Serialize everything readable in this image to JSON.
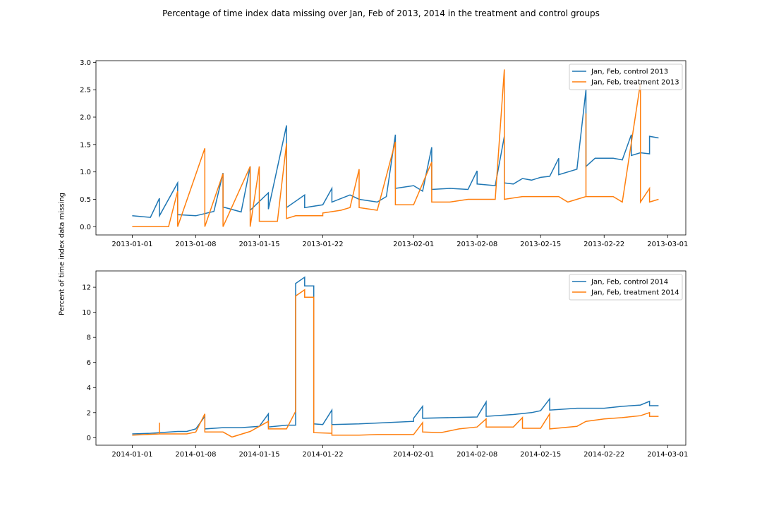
{
  "figure": {
    "title": "Percentage of time index data missing over Jan, Feb of 2013, 2014 in the treatment and control groups",
    "shared_ylabel": "Percent of time index data missing"
  },
  "chart_data": [
    {
      "type": "line",
      "xlabel": "",
      "ylabel": "Percent of time index data missing",
      "x_is_date": true,
      "xlim": [
        "2012-12-28",
        "2013-03-03"
      ],
      "ylim": [
        -0.15,
        3.03
      ],
      "xticks": [
        "2013-01-01",
        "2013-01-08",
        "2013-01-15",
        "2013-01-22",
        "2013-02-01",
        "2013-02-08",
        "2013-02-15",
        "2013-02-22",
        "2013-03-01"
      ],
      "yticks": [
        0.0,
        0.5,
        1.0,
        1.5,
        2.0,
        2.5,
        3.0
      ],
      "ytick_labels": [
        "0.0",
        "0.5",
        "1.0",
        "1.5",
        "2.0",
        "2.5",
        "3.0"
      ],
      "grid": false,
      "legend_position": "top-right",
      "series": [
        {
          "name": "Jan, Feb, control 2013",
          "color": "#1f77b4",
          "points": [
            [
              "2013-01-01",
              0.2
            ],
            [
              "2013-01-03",
              0.17
            ],
            [
              "2013-01-04",
              0.52
            ],
            [
              "2013-01-04",
              0.2
            ],
            [
              "2013-01-06",
              0.8
            ],
            [
              "2013-01-06",
              0.22
            ],
            [
              "2013-01-08",
              0.2
            ],
            [
              "2013-01-10",
              0.28
            ],
            [
              "2013-01-11",
              0.98
            ],
            [
              "2013-01-11",
              0.36
            ],
            [
              "2013-01-13",
              0.27
            ],
            [
              "2013-01-14",
              1.1
            ],
            [
              "2013-01-14",
              0.3
            ],
            [
              "2013-01-16",
              0.62
            ],
            [
              "2013-01-16",
              0.32
            ],
            [
              "2013-01-18",
              1.85
            ],
            [
              "2013-01-18",
              0.35
            ],
            [
              "2013-01-20",
              0.58
            ],
            [
              "2013-01-20",
              0.35
            ],
            [
              "2013-01-22",
              0.4
            ],
            [
              "2013-01-23",
              0.7
            ],
            [
              "2013-01-23",
              0.45
            ],
            [
              "2013-01-25",
              0.58
            ],
            [
              "2013-01-26",
              0.5
            ],
            [
              "2013-01-28",
              0.45
            ],
            [
              "2013-01-29",
              0.55
            ],
            [
              "2013-01-30",
              1.68
            ],
            [
              "2013-01-30",
              0.7
            ],
            [
              "2013-02-01",
              0.75
            ],
            [
              "2013-02-02",
              0.65
            ],
            [
              "2013-02-03",
              1.45
            ],
            [
              "2013-02-03",
              0.68
            ],
            [
              "2013-02-05",
              0.7
            ],
            [
              "2013-02-07",
              0.68
            ],
            [
              "2013-02-08",
              1.02
            ],
            [
              "2013-02-08",
              0.78
            ],
            [
              "2013-02-10",
              0.75
            ],
            [
              "2013-02-11",
              1.65
            ],
            [
              "2013-02-11",
              0.8
            ],
            [
              "2013-02-12",
              0.78
            ],
            [
              "2013-02-13",
              0.88
            ],
            [
              "2013-02-14",
              0.85
            ],
            [
              "2013-02-15",
              0.9
            ],
            [
              "2013-02-16",
              0.92
            ],
            [
              "2013-02-17",
              1.25
            ],
            [
              "2013-02-17",
              0.95
            ],
            [
              "2013-02-19",
              1.05
            ],
            [
              "2013-02-20",
              2.5
            ],
            [
              "2013-02-20",
              1.1
            ],
            [
              "2013-02-21",
              1.25
            ],
            [
              "2013-02-23",
              1.25
            ],
            [
              "2013-02-24",
              1.22
            ],
            [
              "2013-02-25",
              1.68
            ],
            [
              "2013-02-25",
              1.3
            ],
            [
              "2013-02-26",
              1.35
            ],
            [
              "2013-02-27",
              1.33
            ],
            [
              "2013-02-27",
              1.65
            ],
            [
              "2013-02-28",
              1.62
            ]
          ]
        },
        {
          "name": "Jan, Feb, treatment 2013",
          "color": "#ff7f0e",
          "points": [
            [
              "2013-01-01",
              0.0
            ],
            [
              "2013-01-05",
              0.0
            ],
            [
              "2013-01-06",
              0.65
            ],
            [
              "2013-01-06",
              0.0
            ],
            [
              "2013-01-09",
              1.43
            ],
            [
              "2013-01-09",
              0.0
            ],
            [
              "2013-01-11",
              0.97
            ],
            [
              "2013-01-11",
              0.0
            ],
            [
              "2013-01-14",
              1.1
            ],
            [
              "2013-01-14",
              0.0
            ],
            [
              "2013-01-15",
              1.1
            ],
            [
              "2013-01-15",
              0.1
            ],
            [
              "2013-01-17",
              0.1
            ],
            [
              "2013-01-18",
              1.52
            ],
            [
              "2013-01-18",
              0.15
            ],
            [
              "2013-01-19",
              0.2
            ],
            [
              "2013-01-22",
              0.2
            ],
            [
              "2013-01-22",
              0.25
            ],
            [
              "2013-01-24",
              0.3
            ],
            [
              "2013-01-25",
              0.35
            ],
            [
              "2013-01-26",
              1.05
            ],
            [
              "2013-01-26",
              0.35
            ],
            [
              "2013-01-28",
              0.3
            ],
            [
              "2013-01-30",
              1.55
            ],
            [
              "2013-01-30",
              0.4
            ],
            [
              "2013-02-01",
              0.4
            ],
            [
              "2013-02-03",
              1.18
            ],
            [
              "2013-02-03",
              0.45
            ],
            [
              "2013-02-05",
              0.45
            ],
            [
              "2013-02-07",
              0.5
            ],
            [
              "2013-02-10",
              0.5
            ],
            [
              "2013-02-11",
              2.87
            ],
            [
              "2013-02-11",
              0.5
            ],
            [
              "2013-02-13",
              0.55
            ],
            [
              "2013-02-17",
              0.55
            ],
            [
              "2013-02-18",
              0.45
            ],
            [
              "2013-02-20",
              0.55
            ],
            [
              "2013-02-20",
              2.07
            ],
            [
              "2013-02-20",
              0.55
            ],
            [
              "2013-02-23",
              0.55
            ],
            [
              "2013-02-24",
              0.45
            ],
            [
              "2013-02-26",
              2.62
            ],
            [
              "2013-02-26",
              0.45
            ],
            [
              "2013-02-27",
              0.7
            ],
            [
              "2013-02-27",
              0.45
            ],
            [
              "2013-02-28",
              0.5
            ]
          ]
        }
      ]
    },
    {
      "type": "line",
      "xlabel": "",
      "ylabel": "Percent of time index data missing",
      "x_is_date": true,
      "xlim": [
        "2013-12-28",
        "2014-03-03"
      ],
      "ylim": [
        -0.6,
        13.3
      ],
      "xticks": [
        "2014-01-01",
        "2014-01-08",
        "2014-01-15",
        "2014-01-22",
        "2014-02-01",
        "2014-02-08",
        "2014-02-15",
        "2014-02-22",
        "2014-03-01"
      ],
      "yticks": [
        0,
        2,
        4,
        6,
        8,
        10,
        12
      ],
      "ytick_labels": [
        "0",
        "2",
        "4",
        "6",
        "8",
        "10",
        "12"
      ],
      "grid": false,
      "legend_position": "top-right",
      "series": [
        {
          "name": "Jan, Feb, control 2014",
          "color": "#1f77b4",
          "points": [
            [
              "2014-01-01",
              0.3
            ],
            [
              "2014-01-03",
              0.35
            ],
            [
              "2014-01-06",
              0.5
            ],
            [
              "2014-01-07",
              0.5
            ],
            [
              "2014-01-08",
              0.7
            ],
            [
              "2014-01-09",
              1.7
            ],
            [
              "2014-01-09",
              0.7
            ],
            [
              "2014-01-11",
              0.8
            ],
            [
              "2014-01-13",
              0.8
            ],
            [
              "2014-01-15",
              0.9
            ],
            [
              "2014-01-16",
              1.9
            ],
            [
              "2014-01-16",
              0.85
            ],
            [
              "2014-01-18",
              1.0
            ],
            [
              "2014-01-19",
              1.0
            ],
            [
              "2014-01-19",
              12.3
            ],
            [
              "2014-01-20",
              12.8
            ],
            [
              "2014-01-20",
              12.1
            ],
            [
              "2014-01-21",
              12.1
            ],
            [
              "2014-01-21",
              1.1
            ],
            [
              "2014-01-22",
              1.05
            ],
            [
              "2014-01-23",
              2.2
            ],
            [
              "2014-01-23",
              1.05
            ],
            [
              "2014-01-26",
              1.1
            ],
            [
              "2014-01-29",
              1.2
            ],
            [
              "2014-02-01",
              1.3
            ],
            [
              "2014-02-01",
              1.55
            ],
            [
              "2014-02-02",
              2.5
            ],
            [
              "2014-02-02",
              1.55
            ],
            [
              "2014-02-05",
              1.6
            ],
            [
              "2014-02-08",
              1.65
            ],
            [
              "2014-02-09",
              2.85
            ],
            [
              "2014-02-09",
              1.7
            ],
            [
              "2014-02-12",
              1.85
            ],
            [
              "2014-02-14",
              2.0
            ],
            [
              "2014-02-15",
              2.15
            ],
            [
              "2014-02-16",
              3.1
            ],
            [
              "2014-02-16",
              2.2
            ],
            [
              "2014-02-19",
              2.35
            ],
            [
              "2014-02-22",
              2.35
            ],
            [
              "2014-02-24",
              2.5
            ],
            [
              "2014-02-26",
              2.6
            ],
            [
              "2014-02-27",
              2.9
            ],
            [
              "2014-02-27",
              2.55
            ],
            [
              "2014-02-28",
              2.55
            ]
          ]
        },
        {
          "name": "Jan, Feb, treatment 2014",
          "color": "#ff7f0e",
          "points": [
            [
              "2014-01-01",
              0.2
            ],
            [
              "2014-01-04",
              0.3
            ],
            [
              "2014-01-04",
              1.2
            ],
            [
              "2014-01-04",
              0.3
            ],
            [
              "2014-01-07",
              0.3
            ],
            [
              "2014-01-08",
              0.45
            ],
            [
              "2014-01-09",
              1.9
            ],
            [
              "2014-01-09",
              0.45
            ],
            [
              "2014-01-11",
              0.45
            ],
            [
              "2014-01-12",
              0.05
            ],
            [
              "2014-01-14",
              0.5
            ],
            [
              "2014-01-16",
              1.3
            ],
            [
              "2014-01-16",
              0.7
            ],
            [
              "2014-01-18",
              0.7
            ],
            [
              "2014-01-19",
              2.1
            ],
            [
              "2014-01-19",
              11.3
            ],
            [
              "2014-01-20",
              11.8
            ],
            [
              "2014-01-20",
              11.2
            ],
            [
              "2014-01-21",
              11.2
            ],
            [
              "2014-01-21",
              0.4
            ],
            [
              "2014-01-23",
              0.35
            ],
            [
              "2014-01-23",
              1.05
            ],
            [
              "2014-01-23",
              0.2
            ],
            [
              "2014-01-26",
              0.2
            ],
            [
              "2014-01-28",
              0.25
            ],
            [
              "2014-02-01",
              0.25
            ],
            [
              "2014-02-02",
              1.2
            ],
            [
              "2014-02-02",
              0.45
            ],
            [
              "2014-02-04",
              0.4
            ],
            [
              "2014-02-06",
              0.7
            ],
            [
              "2014-02-08",
              0.85
            ],
            [
              "2014-02-09",
              1.5
            ],
            [
              "2014-02-09",
              0.85
            ],
            [
              "2014-02-12",
              0.85
            ],
            [
              "2014-02-13",
              1.6
            ],
            [
              "2014-02-13",
              0.75
            ],
            [
              "2014-02-15",
              0.75
            ],
            [
              "2014-02-16",
              1.9
            ],
            [
              "2014-02-16",
              0.7
            ],
            [
              "2014-02-19",
              0.9
            ],
            [
              "2014-02-20",
              1.3
            ],
            [
              "2014-02-22",
              1.5
            ],
            [
              "2014-02-24",
              1.6
            ],
            [
              "2014-02-26",
              1.75
            ],
            [
              "2014-02-27",
              2.0
            ],
            [
              "2014-02-27",
              1.7
            ],
            [
              "2014-02-28",
              1.7
            ]
          ]
        }
      ]
    }
  ]
}
